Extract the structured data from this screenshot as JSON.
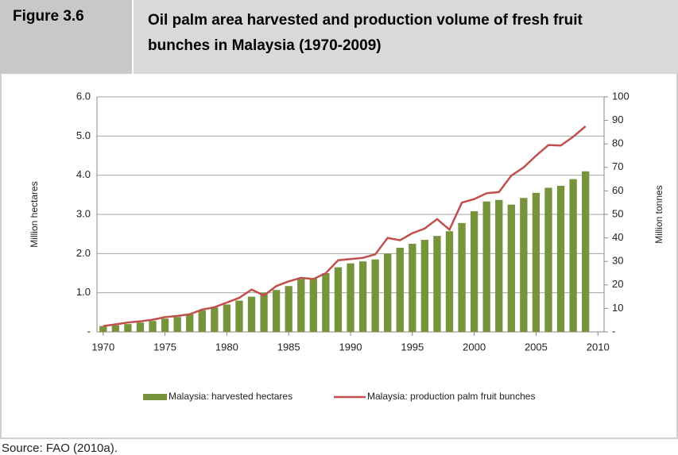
{
  "figure_label": "Figure 3.6",
  "source": "Source: FAO (2010a).",
  "chart_data": {
    "type": "bar",
    "title": "Oil palm area harvested and production volume of fresh fruit bunches in Malaysia (1970-2009)",
    "ylabel": "Million hectares",
    "y2label": "Million tonnes",
    "x": [
      1970,
      1971,
      1972,
      1973,
      1974,
      1975,
      1976,
      1977,
      1978,
      1979,
      1980,
      1981,
      1982,
      1983,
      1984,
      1985,
      1986,
      1987,
      1988,
      1989,
      1990,
      1991,
      1992,
      1993,
      1994,
      1995,
      1996,
      1997,
      1998,
      1999,
      2000,
      2001,
      2002,
      2003,
      2004,
      2005,
      2006,
      2007,
      2008,
      2009
    ],
    "xlim": [
      1969.5,
      2010.5
    ],
    "xticks": [
      1970,
      1975,
      1980,
      1985,
      1990,
      1995,
      2000,
      2005,
      2010
    ],
    "ylim": [
      0,
      6
    ],
    "yticks": [
      {
        "value": 0,
        "label": "-"
      },
      {
        "value": 1,
        "label": "1.0"
      },
      {
        "value": 2,
        "label": "2.0"
      },
      {
        "value": 3,
        "label": "3.0"
      },
      {
        "value": 4,
        "label": "4.0"
      },
      {
        "value": 5,
        "label": "5.0"
      },
      {
        "value": 6,
        "label": "6.0"
      }
    ],
    "y2lim": [
      0,
      100
    ],
    "y2ticks": [
      {
        "value": 0,
        "label": "-"
      },
      10,
      20,
      30,
      40,
      50,
      60,
      70,
      80,
      90,
      100
    ],
    "grid": true,
    "legend": "bottom",
    "series": [
      {
        "name": "Malaysia: harvested hectares",
        "type": "bar",
        "color": "#77933c",
        "values": [
          0.15,
          0.17,
          0.2,
          0.24,
          0.28,
          0.34,
          0.38,
          0.45,
          0.55,
          0.62,
          0.7,
          0.8,
          0.9,
          1.0,
          1.07,
          1.17,
          1.35,
          1.37,
          1.5,
          1.65,
          1.75,
          1.8,
          1.85,
          2.0,
          2.15,
          2.25,
          2.35,
          2.45,
          2.57,
          2.78,
          3.08,
          3.33,
          3.37,
          3.25,
          3.42,
          3.55,
          3.68,
          3.73,
          3.9,
          4.1
        ]
      },
      {
        "name": "Malaysia: production palm fruit bunches",
        "type": "line",
        "axis": "y2",
        "color": "#c0504d",
        "values": [
          2.5,
          3.2,
          4,
          4.5,
          5.2,
          6.3,
          6.8,
          7.5,
          9.5,
          10.5,
          12.5,
          14.5,
          18,
          15.5,
          19.5,
          21.5,
          23,
          22.5,
          25,
          30.5,
          31,
          31.5,
          33,
          40,
          39,
          42,
          44,
          48,
          43.5,
          55,
          56.5,
          59,
          59.5,
          66.5,
          70,
          75,
          79.5,
          79.3,
          83,
          87.5
        ]
      }
    ]
  }
}
